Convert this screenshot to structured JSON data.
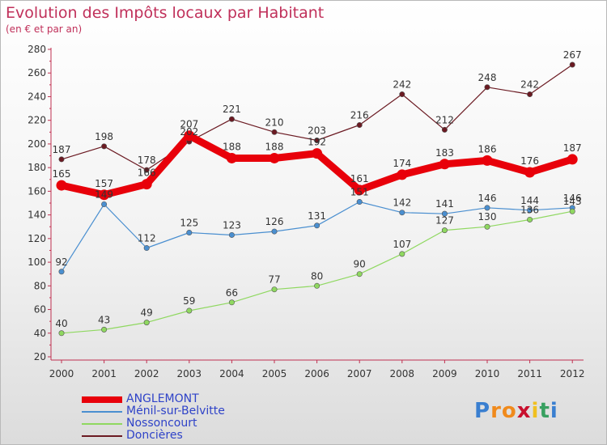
{
  "chart_data": {
    "type": "line",
    "title": "Evolution des Impôts locaux par Habitant",
    "subtitle": "(en € et par an)",
    "x": [
      "2000",
      "2001",
      "2002",
      "2003",
      "2004",
      "2005",
      "2006",
      "2007",
      "2008",
      "2009",
      "2010",
      "2011",
      "2012"
    ],
    "ylim": [
      20,
      280
    ],
    "yticks": [
      20,
      40,
      60,
      80,
      100,
      120,
      140,
      160,
      180,
      200,
      220,
      240,
      260,
      280
    ],
    "grid": false,
    "legend_position": "bottom-left",
    "series": [
      {
        "name": "Doncières",
        "color": "#6b1a22",
        "values": [
          187,
          198,
          178,
          202,
          221,
          210,
          203,
          216,
          242,
          212,
          248,
          242,
          267
        ],
        "labels": [
          "187",
          "198",
          "178",
          "202",
          "221",
          "210",
          "203",
          "216",
          "242",
          "212",
          "248",
          "242",
          "267"
        ]
      },
      {
        "name": "Ménil-sur-Belvitte",
        "color": "#4a8fd0",
        "values": [
          92,
          149,
          112,
          125,
          123,
          126,
          131,
          151,
          142,
          141,
          146,
          144,
          146
        ],
        "labels": [
          "92",
          "149",
          "112",
          "125",
          "123",
          "126",
          "131",
          "151",
          "142",
          "141",
          "146",
          "144",
          "146"
        ]
      },
      {
        "name": "Nossoncourt",
        "color": "#8fd860",
        "values": [
          40,
          43,
          49,
          59,
          66,
          77,
          80,
          90,
          107,
          127,
          130,
          136,
          143
        ],
        "labels": [
          "40",
          "43",
          "49",
          "59",
          "66",
          "77",
          "80",
          "90",
          "107",
          "127",
          "130",
          "136",
          "143"
        ]
      },
      {
        "name": "ANGLEMONT",
        "color": "#e8000a",
        "values": [
          165,
          157,
          166,
          207,
          188,
          188,
          192,
          161,
          174,
          183,
          186,
          176,
          187
        ],
        "labels": [
          "165",
          "157",
          "166",
          "207",
          "188",
          "188",
          "192",
          "161",
          "174",
          "183",
          "186",
          "176",
          "187"
        ]
      }
    ]
  },
  "legend": [
    {
      "name": "ANGLEMONT",
      "color": "#e8000a"
    },
    {
      "name": "Ménil-sur-Belvitte",
      "color": "#4a8fd0"
    },
    {
      "name": "Nossoncourt",
      "color": "#8fd860"
    },
    {
      "name": "Doncières",
      "color": "#6b1a22"
    }
  ],
  "logo": {
    "letters": [
      "P",
      "r",
      "o",
      "x",
      "i",
      "t",
      "i"
    ],
    "colors": [
      "#3a7fd0",
      "#f08a1c",
      "#f08a1c",
      "#c8102e",
      "#f0c020",
      "#38a060",
      "#3a7fd0"
    ]
  }
}
